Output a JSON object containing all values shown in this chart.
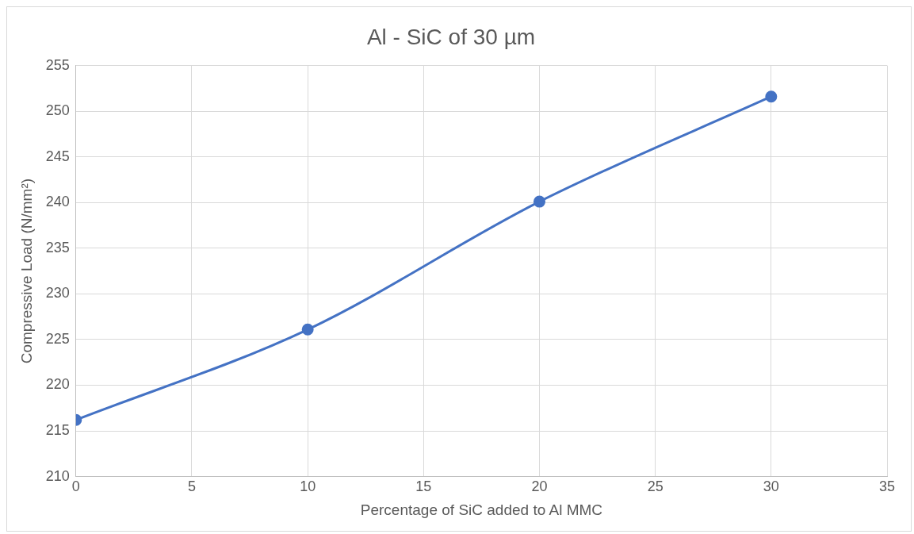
{
  "chart_data": {
    "type": "line",
    "title": "Al - SiC of 30 µm",
    "xlabel": "Percentage of SiC added to Al MMC",
    "ylabel": "Compressive Load (N/mm²)",
    "x": [
      0,
      10,
      20,
      30
    ],
    "series": [
      {
        "color": "#4472c4",
        "values": [
          216.2,
          226.1,
          240.1,
          251.6
        ]
      }
    ],
    "xlim": [
      0,
      35
    ],
    "xticks": [
      0,
      5,
      10,
      15,
      20,
      25,
      30,
      35
    ],
    "ylim": [
      210,
      255
    ],
    "yticks": [
      210,
      215,
      220,
      225,
      230,
      235,
      240,
      245,
      250,
      255
    ],
    "grid": true,
    "legend": false,
    "marker": "circle",
    "line_style": "solid"
  }
}
